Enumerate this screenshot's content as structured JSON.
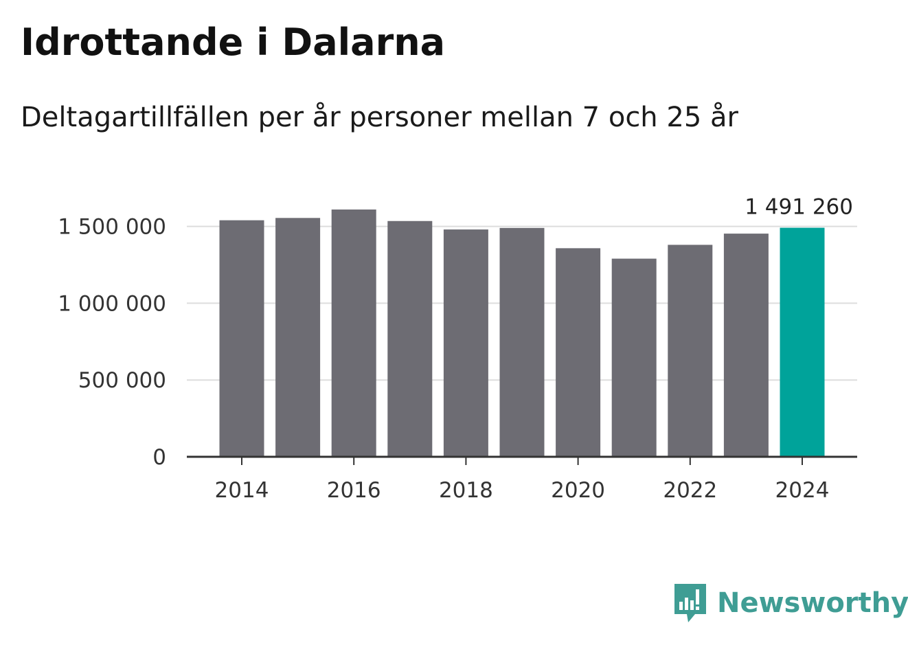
{
  "chart_data": {
    "type": "bar",
    "title": "Idrottande i Dalarna",
    "subtitle": "Deltagartillfällen per år personer mellan 7 och 25 år",
    "categories": [
      "2014",
      "2015",
      "2016",
      "2017",
      "2018",
      "2019",
      "2020",
      "2021",
      "2022",
      "2023",
      "2024"
    ],
    "values": [
      1540000,
      1555000,
      1610000,
      1535000,
      1480000,
      1490000,
      1358000,
      1290000,
      1380000,
      1453000,
      1491260
    ],
    "highlight_index": 10,
    "highlight_label": "1 491 260",
    "ylim": [
      0,
      1610000
    ],
    "y_ticks": [
      {
        "value": 0,
        "label": "0"
      },
      {
        "value": 500000,
        "label": "500 000"
      },
      {
        "value": 1000000,
        "label": "1 000 000"
      },
      {
        "value": 1500000,
        "label": "1 500 000"
      }
    ],
    "x_tick_labels": [
      "2014",
      "2016",
      "2018",
      "2020",
      "2022",
      "2024"
    ],
    "xlabel": "",
    "ylabel": "",
    "colors": {
      "bar": "#6d6c73",
      "highlight": "#00a39a",
      "grid": "#dddddd",
      "axis": "#333333"
    }
  },
  "brand": {
    "name": "Newsworthy",
    "color": "#3f9d94"
  }
}
